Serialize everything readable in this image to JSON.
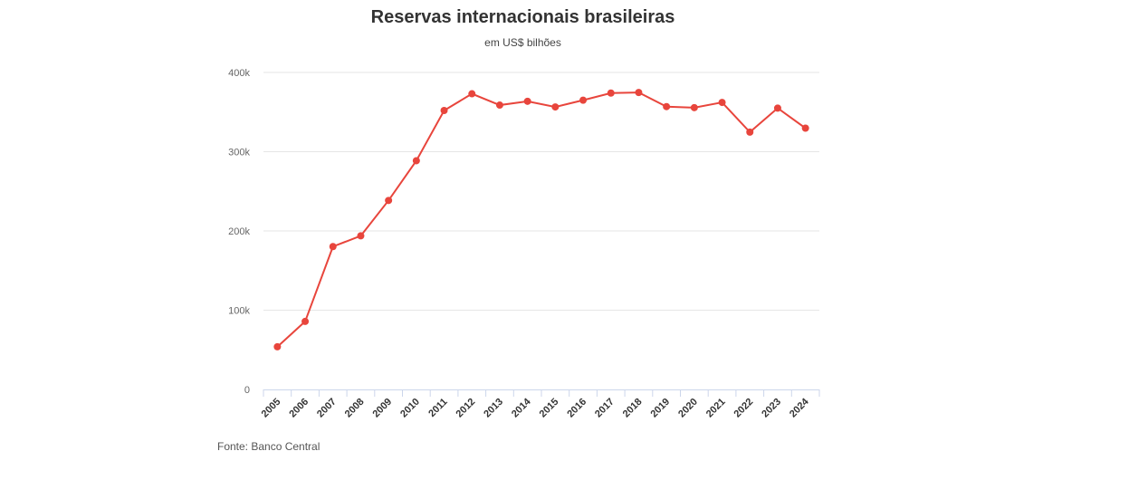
{
  "chart_data": {
    "type": "line",
    "title": "Reservas internacionais brasileiras",
    "subtitle": "em US$ bilhões",
    "source": "Fonte: Banco Central",
    "xlabel": "",
    "ylabel": "",
    "ylim": [
      0,
      400000
    ],
    "yticks": [
      0,
      100000,
      200000,
      300000,
      400000
    ],
    "ytick_labels": [
      "0",
      "100k",
      "200k",
      "300k",
      "400k"
    ],
    "grid": true,
    "categories": [
      "2005",
      "2006",
      "2007",
      "2008",
      "2009",
      "2010",
      "2011",
      "2012",
      "2013",
      "2014",
      "2015",
      "2016",
      "2017",
      "2018",
      "2019",
      "2020",
      "2021",
      "2022",
      "2023",
      "2024"
    ],
    "series": [
      {
        "name": "Reservas internacionais",
        "color": "#e8453c",
        "values": [
          53800,
          85800,
          180300,
          193800,
          238500,
          288600,
          352000,
          373100,
          358800,
          363600,
          356500,
          365000,
          374000,
          374700,
          356900,
          355600,
          362200,
          324700,
          355000,
          329700
        ]
      }
    ]
  }
}
